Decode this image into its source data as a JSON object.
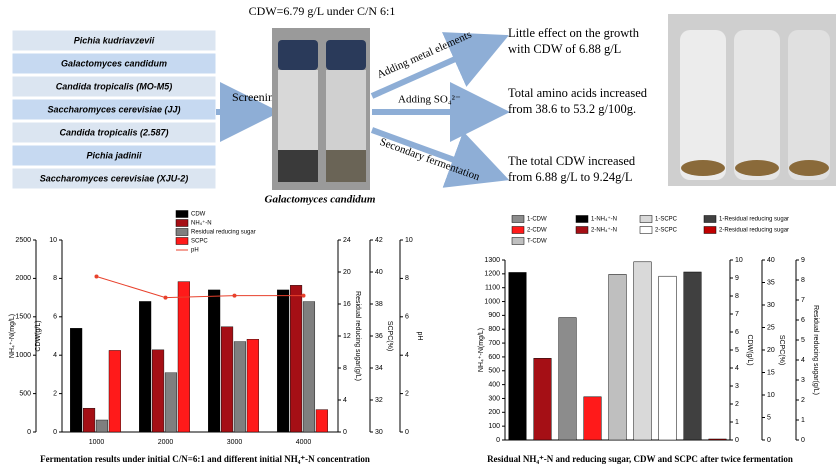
{
  "diagram": {
    "title": "CDW=6.79 g/L under C/N 6:1",
    "strains": [
      "Pichia kudriavzevii",
      "Galactomyces candidum",
      "Candida tropicalis (MO-M5)",
      "Saccharomyces cerevisiae (JJ)",
      "Candida tropicalis (2.587)",
      "Pichia jadinii",
      "Saccharomyces cerevisiae (XJU-2)"
    ],
    "screening": "Screening",
    "organism": "Galactomyces candidum",
    "steps": [
      {
        "label": "Adding metal elements",
        "result": [
          "Little effect on the growth",
          "with CDW of 6.88 g/L"
        ]
      },
      {
        "label": "Adding SO₄²⁻",
        "result": [
          "Total amino acids increased",
          "from 38.6 to 53.2 g/100g."
        ]
      },
      {
        "label": "Secondary fermentation",
        "result": [
          "The total CDW increased",
          "from 6.88 g/L to 9.24g/L"
        ]
      }
    ]
  },
  "chart_data": [
    {
      "type": "bar",
      "caption": "Fermentation results under initial C/N=6:1 and different initial NH₄⁺-N concentration",
      "categories": [
        "1000",
        "2000",
        "3000",
        "4000"
      ],
      "axes": [
        {
          "label": "NH₄⁺-N(mg/L)",
          "lim": [
            0,
            2500
          ],
          "ticks": [
            0,
            500,
            1000,
            1500,
            2000,
            2500
          ]
        },
        {
          "label": "CDW(g/L)",
          "lim": [
            0,
            10
          ],
          "ticks": [
            0,
            2,
            4,
            6,
            8,
            10
          ]
        },
        {
          "label": "Residual reducing sugar(g/L)",
          "lim": [
            0,
            24
          ],
          "ticks": [
            0,
            4,
            8,
            12,
            16,
            20,
            24
          ]
        },
        {
          "label": "SCPC(%)",
          "lim": [
            30,
            42
          ],
          "ticks": [
            30,
            32,
            34,
            36,
            38,
            40,
            42
          ]
        },
        {
          "label": "pH",
          "lim": [
            0,
            10
          ],
          "ticks": [
            0,
            2,
            4,
            6,
            8,
            10
          ]
        }
      ],
      "series": [
        {
          "name": "CDW",
          "color": "#000000",
          "axis": 1,
          "values": [
            5.4,
            6.8,
            7.4,
            7.4
          ]
        },
        {
          "name": "NH₄⁺-N",
          "color": "#a50f15",
          "axis": 0,
          "values": [
            310,
            1070,
            1370,
            1910
          ]
        },
        {
          "name": "Residual reducing sugar",
          "color": "#7f7f7f",
          "axis": 2,
          "values": [
            1.5,
            7.4,
            11.3,
            16.3
          ]
        },
        {
          "name": "SCPC",
          "color": "#ff1a1a",
          "axis": 3,
          "values": [
            35.1,
            39.4,
            35.8,
            31.4
          ]
        },
        {
          "name": "pH",
          "type": "line",
          "color": "#e8412c",
          "axis": 4,
          "values": [
            8.1,
            7.0,
            7.1,
            7.1
          ]
        }
      ]
    },
    {
      "type": "bar",
      "caption": "Residual NH₄⁺-N and reducing sugar, CDW and SCPC after twice fermentation",
      "axes": [
        {
          "label": "NH₄⁺-N(mg/L)",
          "lim": [
            0,
            1300
          ],
          "ticks": [
            0,
            100,
            200,
            300,
            400,
            500,
            600,
            700,
            800,
            900,
            1000,
            1100,
            1200,
            1300
          ]
        },
        {
          "label": "CDW(g/L)",
          "lim": [
            0,
            10
          ],
          "ticks": [
            0,
            1,
            2,
            3,
            4,
            5,
            6,
            7,
            8,
            9,
            10
          ]
        },
        {
          "label": "SCPC(%)",
          "lim": [
            0,
            40
          ],
          "ticks": [
            0,
            5,
            10,
            15,
            20,
            25,
            30,
            35,
            40
          ]
        },
        {
          "label": "Residual reducing sugar(g/L)",
          "lim": [
            0,
            9
          ],
          "ticks": [
            0,
            1,
            2,
            3,
            4,
            5,
            6,
            7,
            8,
            9
          ]
        }
      ],
      "series": [
        {
          "name": "1-CDW",
          "color": "#8c8c8c",
          "axis": 1,
          "values": [
            6.8
          ]
        },
        {
          "name": "1-NH₄⁺-N",
          "color": "#000000",
          "axis": 0,
          "values": [
            1210
          ]
        },
        {
          "name": "1-SCPC",
          "color": "#d9d9d9",
          "axis": 2,
          "values": [
            39.6
          ]
        },
        {
          "name": "1-Residual reducing sugar",
          "color": "#404040",
          "axis": 3,
          "values": [
            8.4
          ]
        },
        {
          "name": "2-CDW",
          "color": "#ff1a1a",
          "axis": 1,
          "values": [
            2.4
          ]
        },
        {
          "name": "2-NH₄⁺-N",
          "color": "#a50f15",
          "axis": 0,
          "values": [
            590
          ]
        },
        {
          "name": "2-SCPC",
          "color": "#ffffff",
          "axis": 2,
          "values": [
            36.4
          ]
        },
        {
          "name": "2-Residual reducing sugar",
          "color": "#c00000",
          "axis": 3,
          "values": [
            0.05
          ]
        },
        {
          "name": "T-CDW",
          "color": "#bfbfbf",
          "axis": 1,
          "values": [
            9.2
          ]
        }
      ]
    }
  ]
}
